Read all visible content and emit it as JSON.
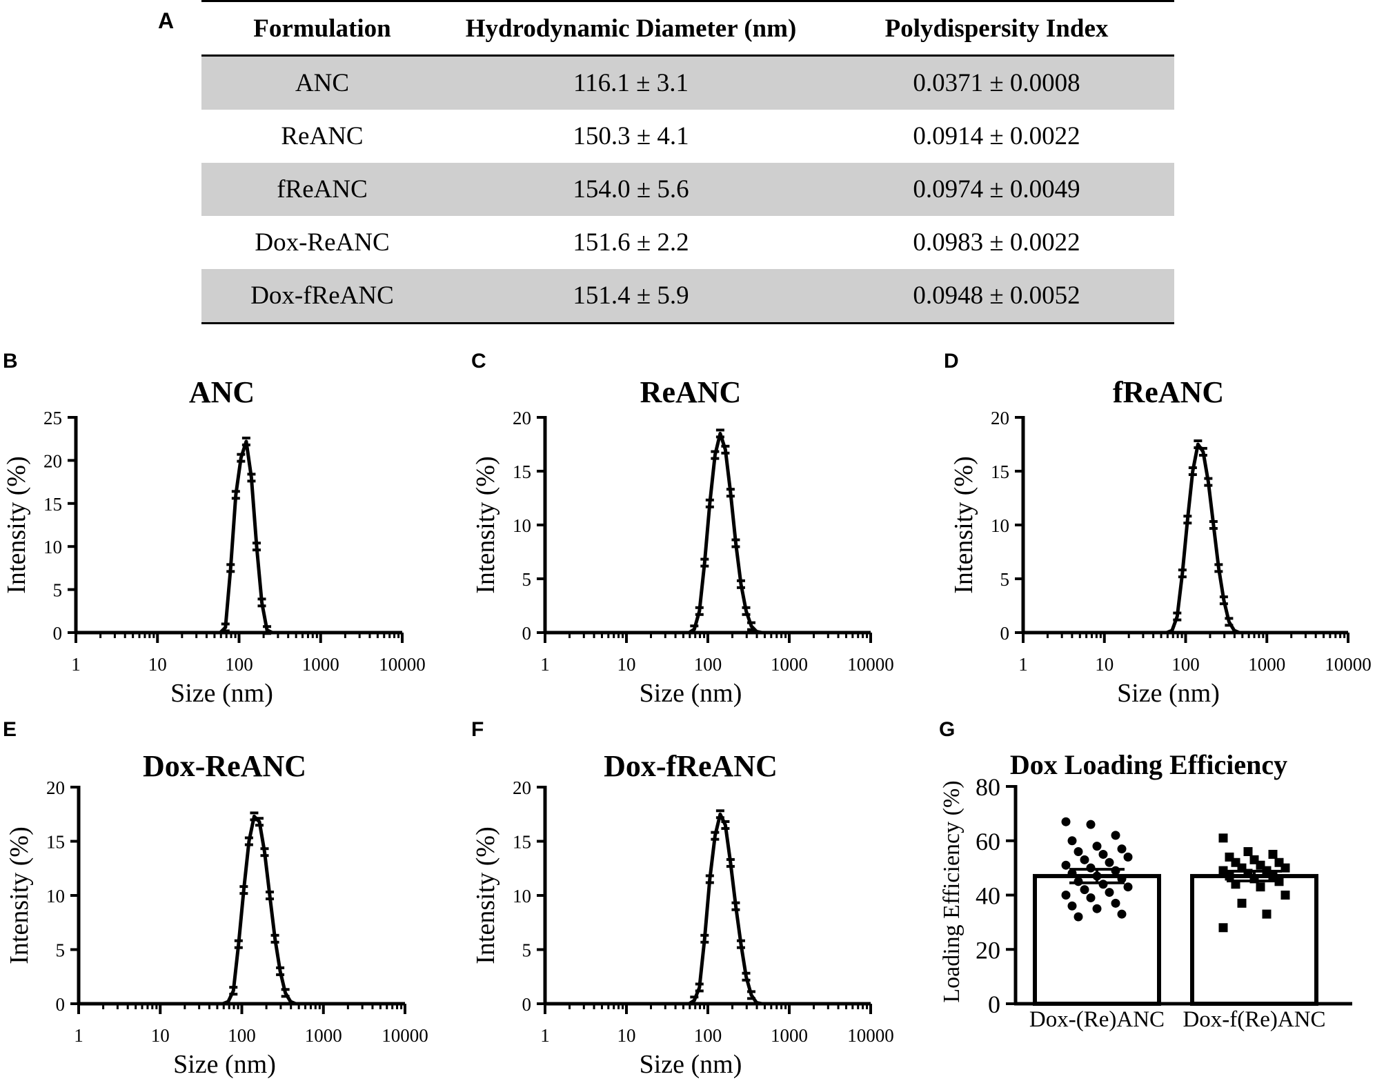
{
  "panel_labels": {
    "A": "A",
    "B": "B",
    "C": "C",
    "D": "D",
    "E": "E",
    "F": "F",
    "G": "G"
  },
  "table": {
    "headers": [
      "Formulation",
      "Hydrodynamic Diameter (nm)",
      "Polydispersity Index"
    ],
    "rows": [
      [
        "ANC",
        "116.1 ± 3.1",
        "0.0371 ± 0.0008"
      ],
      [
        "ReANC",
        "150.3 ± 4.1",
        "0.0914 ± 0.0022"
      ],
      [
        "fReANC",
        "154.0 ± 5.6",
        "0.0974 ± 0.0049"
      ],
      [
        "Dox-ReANC",
        "151.6 ± 2.2",
        "0.0983 ± 0.0022"
      ],
      [
        "Dox-fReANC",
        "151.4 ± 5.9",
        "0.0948 ± 0.0052"
      ]
    ]
  },
  "chart_data": [
    {
      "panel": "B",
      "type": "line",
      "title": "ANC",
      "xlabel": "Size (nm)",
      "ylabel": "Intensity (%)",
      "xscale": "log",
      "xlim": [
        1,
        10000
      ],
      "ylim": [
        0,
        25
      ],
      "xticks": [
        "1",
        "10",
        "100",
        "1000",
        "10000"
      ],
      "yticks": [
        "0",
        "5",
        "10",
        "15",
        "20",
        "25"
      ],
      "x": [
        58.8,
        68.1,
        78.8,
        91.3,
        105.7,
        122.4,
        141.8,
        164.2,
        190.1,
        220.2,
        255.0
      ],
      "y": [
        0,
        0.6,
        7.5,
        16.0,
        20.3,
        22.2,
        18.0,
        10.0,
        3.5,
        0.3,
        0
      ]
    },
    {
      "panel": "C",
      "type": "line",
      "title": "ReANC",
      "xlabel": "Size (nm)",
      "ylabel": "Intensity  (%)",
      "xscale": "log",
      "xlim": [
        1,
        10000
      ],
      "ylim": [
        0,
        20
      ],
      "xticks": [
        "1",
        "10",
        "100",
        "1000",
        "10000"
      ],
      "yticks": [
        "0",
        "5",
        "10",
        "15",
        "20"
      ],
      "x": [
        58.8,
        68.1,
        78.8,
        91.3,
        105.7,
        122.4,
        141.8,
        164.2,
        190.1,
        220.2,
        255.0,
        295.3,
        342.0,
        396.1,
        458.7
      ],
      "y": [
        0,
        0.3,
        2.0,
        6.5,
        12.0,
        16.5,
        18.5,
        17.0,
        13.0,
        8.3,
        4.5,
        2.0,
        0.6,
        0.1,
        0
      ]
    },
    {
      "panel": "D",
      "type": "line",
      "title": "fReANC",
      "xlabel": "Size (nm)",
      "ylabel": "Intensity  (%)",
      "xscale": "log",
      "xlim": [
        1,
        10000
      ],
      "ylim": [
        0,
        20
      ],
      "xticks": [
        "1",
        "10",
        "100",
        "1000",
        "10000"
      ],
      "yticks": [
        "0",
        "5",
        "10",
        "15",
        "20"
      ],
      "x": [
        58.8,
        68.1,
        78.8,
        91.3,
        105.7,
        122.4,
        141.8,
        164.2,
        190.1,
        220.2,
        255.0,
        295.3,
        342.0,
        396.1,
        458.7
      ],
      "y": [
        0,
        0.2,
        1.5,
        5.5,
        10.5,
        15.0,
        17.5,
        16.8,
        14.0,
        10.0,
        6.0,
        3.0,
        1.0,
        0.2,
        0
      ]
    },
    {
      "panel": "E",
      "type": "line",
      "title": "Dox-ReANC",
      "xlabel": "Size (nm)",
      "ylabel": "Intensity  (%)",
      "xscale": "log",
      "xlim": [
        1,
        10000
      ],
      "ylim": [
        0,
        20
      ],
      "xticks": [
        "1",
        "10",
        "100",
        "1000",
        "10000"
      ],
      "yticks": [
        "0",
        "5",
        "10",
        "15",
        "20"
      ],
      "x": [
        58.8,
        68.1,
        78.8,
        91.3,
        105.7,
        122.4,
        141.8,
        164.2,
        190.1,
        220.2,
        255.0,
        295.3,
        342.0,
        396.1,
        458.7
      ],
      "y": [
        0,
        0.2,
        1.2,
        5.5,
        10.5,
        15.0,
        17.3,
        16.8,
        14.0,
        10.0,
        6.0,
        3.0,
        1.0,
        0.2,
        0
      ]
    },
    {
      "panel": "F",
      "type": "line",
      "title": "Dox-fReANC",
      "xlabel": "Size (nm)",
      "ylabel": "Intensity  (%)",
      "xscale": "log",
      "xlim": [
        1,
        10000
      ],
      "ylim": [
        0,
        20
      ],
      "xticks": [
        "1",
        "10",
        "100",
        "1000",
        "10000"
      ],
      "yticks": [
        "0",
        "5",
        "10",
        "15",
        "20"
      ],
      "x": [
        58.8,
        68.1,
        78.8,
        91.3,
        105.7,
        122.4,
        141.8,
        164.2,
        190.1,
        220.2,
        255.0,
        295.3,
        342.0,
        396.1,
        458.7
      ],
      "y": [
        0,
        0.3,
        1.5,
        6.0,
        11.5,
        15.5,
        17.5,
        16.5,
        13.0,
        9.0,
        5.5,
        2.5,
        0.8,
        0.1,
        0
      ]
    },
    {
      "panel": "G",
      "type": "bar",
      "title": "Dox Loading  Efficiency",
      "xlabel": "",
      "ylabel": "Loading Efficiency  (%)",
      "ylim": [
        0,
        80
      ],
      "yticks": [
        "0",
        "20",
        "40",
        "60",
        "80"
      ],
      "categories": [
        "Dox-(Re)ANC",
        "Dox-f(Re)ANC"
      ],
      "values": [
        47,
        47
      ],
      "errors": [
        2.5,
        1.8
      ],
      "points": [
        [
          67,
          66,
          62,
          60,
          58,
          57,
          56,
          55,
          54,
          53,
          52,
          51,
          50,
          49,
          48,
          47,
          46,
          45,
          44,
          43,
          42,
          41,
          40,
          39,
          37,
          36,
          35,
          33,
          32
        ],
        [
          61,
          56,
          55,
          54,
          53,
          52,
          52,
          51,
          50,
          50,
          49,
          49,
          48,
          47,
          47,
          46,
          45,
          44,
          43,
          40,
          37,
          33,
          28
        ]
      ],
      "markers": [
        "circle",
        "square"
      ]
    }
  ]
}
